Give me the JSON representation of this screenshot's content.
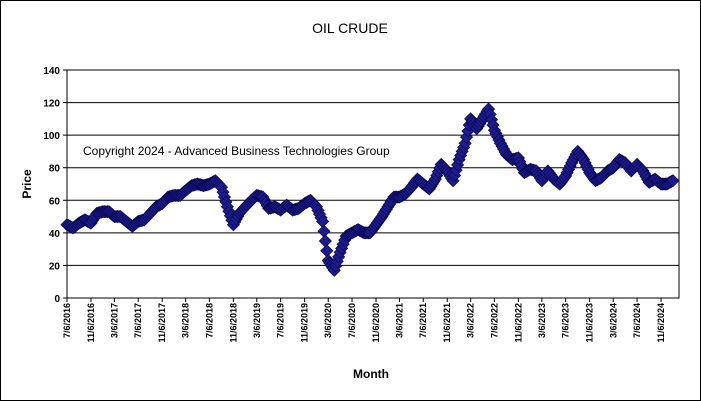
{
  "chart_data": {
    "type": "scatter",
    "title": "OIL CRUDE",
    "xlabel": "Month",
    "ylabel": "Price",
    "annotation": "Copyright 2024 - Advanced Business Technologies Group",
    "ylim": [
      0,
      140
    ],
    "yticks": [
      0,
      20,
      40,
      60,
      80,
      100,
      120,
      140
    ],
    "grid": true,
    "legend": "none",
    "marker": "diamond",
    "marker_color": "#1c1c8c",
    "xtick_labels": [
      "7/6/2016",
      "11/6/2016",
      "3/6/2017",
      "7/6/2017",
      "11/6/2017",
      "3/6/2018",
      "7/6/2018",
      "11/6/2018",
      "3/6/2019",
      "7/6/2019",
      "11/6/2019",
      "3/6/2020",
      "7/6/2020",
      "11/6/2020",
      "3/6/2021",
      "7/6/2021",
      "11/6/2021",
      "3/6/2022",
      "7/6/2022",
      "11/6/2022",
      "3/6/2023",
      "7/6/2023",
      "11/6/2023",
      "3/6/2024",
      "7/6/2024",
      "11/6/2024"
    ],
    "series": [
      {
        "x": [
          "2016-07-06",
          "2016-08-06",
          "2016-09-06",
          "2016-10-06",
          "2016-11-06",
          "2016-12-06",
          "2017-01-06",
          "2017-02-06",
          "2017-03-06",
          "2017-04-06",
          "2017-05-06",
          "2017-06-06",
          "2017-07-06",
          "2017-08-06",
          "2017-09-06",
          "2017-10-06",
          "2017-11-06",
          "2017-12-06",
          "2018-01-06",
          "2018-02-06",
          "2018-03-06",
          "2018-04-06",
          "2018-05-06",
          "2018-06-06",
          "2018-07-06",
          "2018-08-06",
          "2018-09-06",
          "2018-10-06",
          "2018-11-06",
          "2018-12-06",
          "2019-01-06",
          "2019-02-06",
          "2019-03-06",
          "2019-04-06",
          "2019-05-06",
          "2019-06-06",
          "2019-07-06",
          "2019-08-06",
          "2019-09-06",
          "2019-10-06",
          "2019-11-06",
          "2019-12-06",
          "2020-01-06",
          "2020-02-06",
          "2020-03-06",
          "2020-04-06",
          "2020-05-06",
          "2020-06-06",
          "2020-07-06",
          "2020-08-06",
          "2020-09-06",
          "2020-10-06",
          "2020-11-06",
          "2020-12-06",
          "2021-01-06",
          "2021-02-06",
          "2021-03-06",
          "2021-04-06",
          "2021-05-06",
          "2021-06-06",
          "2021-07-06",
          "2021-08-06",
          "2021-09-06",
          "2021-10-06",
          "2021-11-06",
          "2021-12-06",
          "2022-01-06",
          "2022-02-06",
          "2022-03-06",
          "2022-04-06",
          "2022-05-06",
          "2022-06-06",
          "2022-07-06",
          "2022-08-06",
          "2022-09-06",
          "2022-10-06",
          "2022-11-06",
          "2022-12-06",
          "2023-01-06",
          "2023-02-06",
          "2023-03-06",
          "2023-04-06",
          "2023-05-06",
          "2023-06-06",
          "2023-07-06",
          "2023-08-06",
          "2023-09-06",
          "2023-10-06",
          "2023-11-06",
          "2023-12-06",
          "2024-01-06",
          "2024-02-06",
          "2024-03-06",
          "2024-04-06",
          "2024-05-06",
          "2024-06-06",
          "2024-07-06",
          "2024-08-06",
          "2024-09-06",
          "2024-10-06",
          "2024-11-06",
          "2024-12-06",
          "2025-01-06"
        ],
        "y": [
          45,
          43,
          46,
          48,
          46,
          52,
          53,
          53,
          50,
          50,
          47,
          44,
          47,
          48,
          52,
          56,
          58,
          62,
          63,
          63,
          66,
          69,
          70,
          69,
          70,
          72,
          68,
          56,
          45,
          52,
          56,
          60,
          63,
          62,
          55,
          56,
          54,
          57,
          54,
          55,
          58,
          60,
          56,
          47,
          23,
          17,
          28,
          38,
          40,
          42,
          40,
          40,
          45,
          50,
          56,
          62,
          62,
          64,
          68,
          73,
          70,
          67,
          73,
          82,
          78,
          72,
          85,
          95,
          110,
          104,
          110,
          116,
          103,
          95,
          88,
          85,
          86,
          77,
          79,
          78,
          72,
          78,
          73,
          70,
          75,
          83,
          90,
          85,
          77,
          72,
          74,
          78,
          80,
          85,
          83,
          78,
          82,
          78,
          71,
          73,
          70,
          70,
          72
        ]
      }
    ]
  }
}
